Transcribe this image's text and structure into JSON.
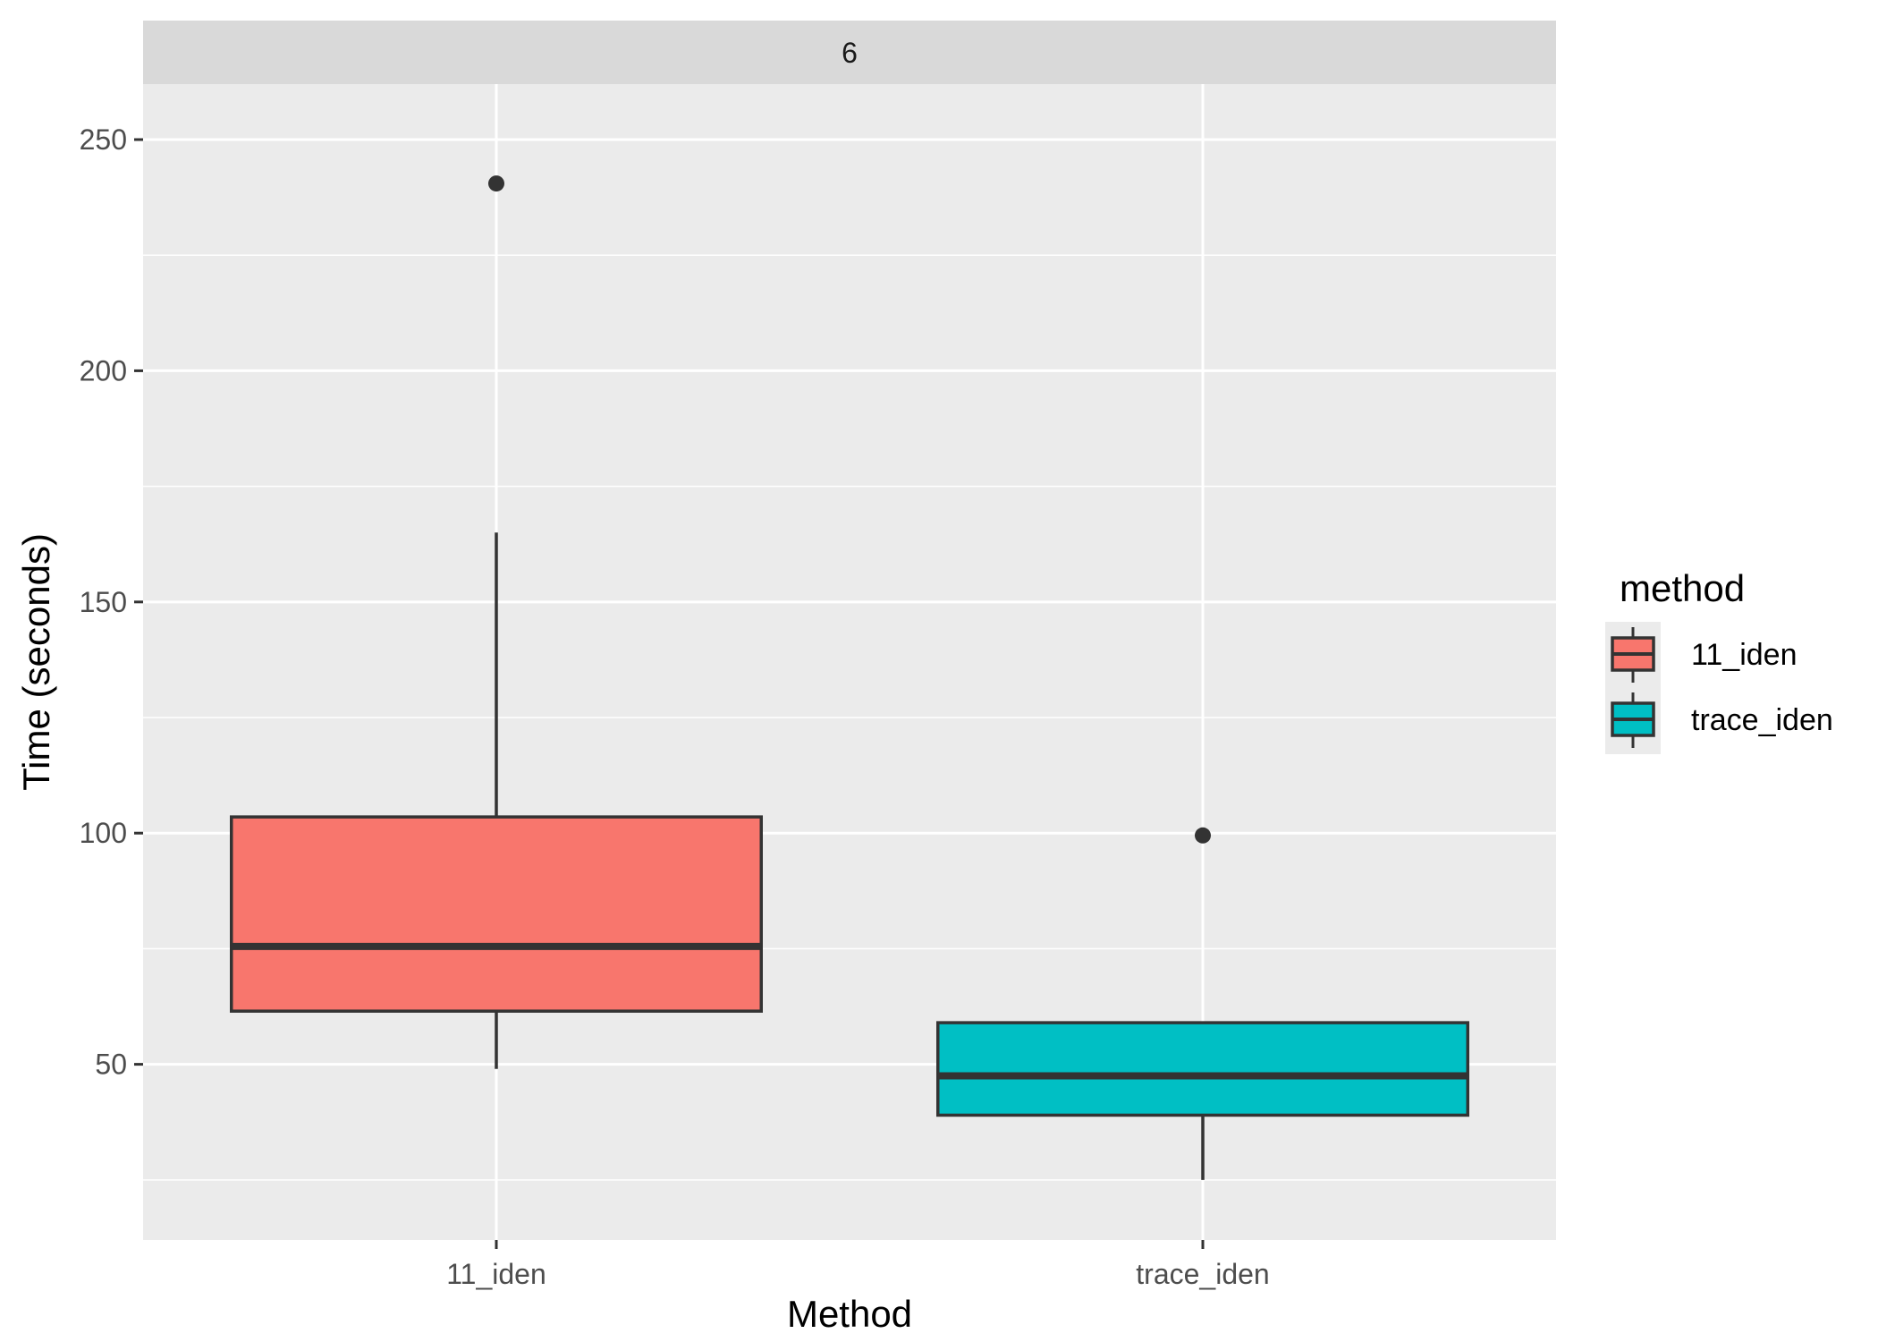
{
  "chart_data": {
    "type": "boxplot",
    "facet_label": "6",
    "xlabel": "Method",
    "ylabel": "Time (seconds)",
    "ylim": [
      12,
      262
    ],
    "yticks": [
      50,
      100,
      150,
      200,
      250
    ],
    "ytick_labels": [
      "50",
      "100",
      "150",
      "200",
      "250"
    ],
    "grid": true,
    "legend": {
      "title": "method",
      "position": "right"
    },
    "series": [
      {
        "name": "11_iden",
        "category": "11_iden",
        "color": "#F8766D",
        "whisker_low": 49,
        "q1": 61.5,
        "median": 75.5,
        "q3": 103.5,
        "whisker_high": 165,
        "outliers": [
          240.5
        ]
      },
      {
        "name": "trace_iden",
        "category": "trace_iden",
        "color": "#00BFC4",
        "whisker_low": 25,
        "q1": 39,
        "median": 47.5,
        "q3": 59,
        "whisker_high": 59,
        "outliers": [
          99.5
        ]
      }
    ]
  }
}
